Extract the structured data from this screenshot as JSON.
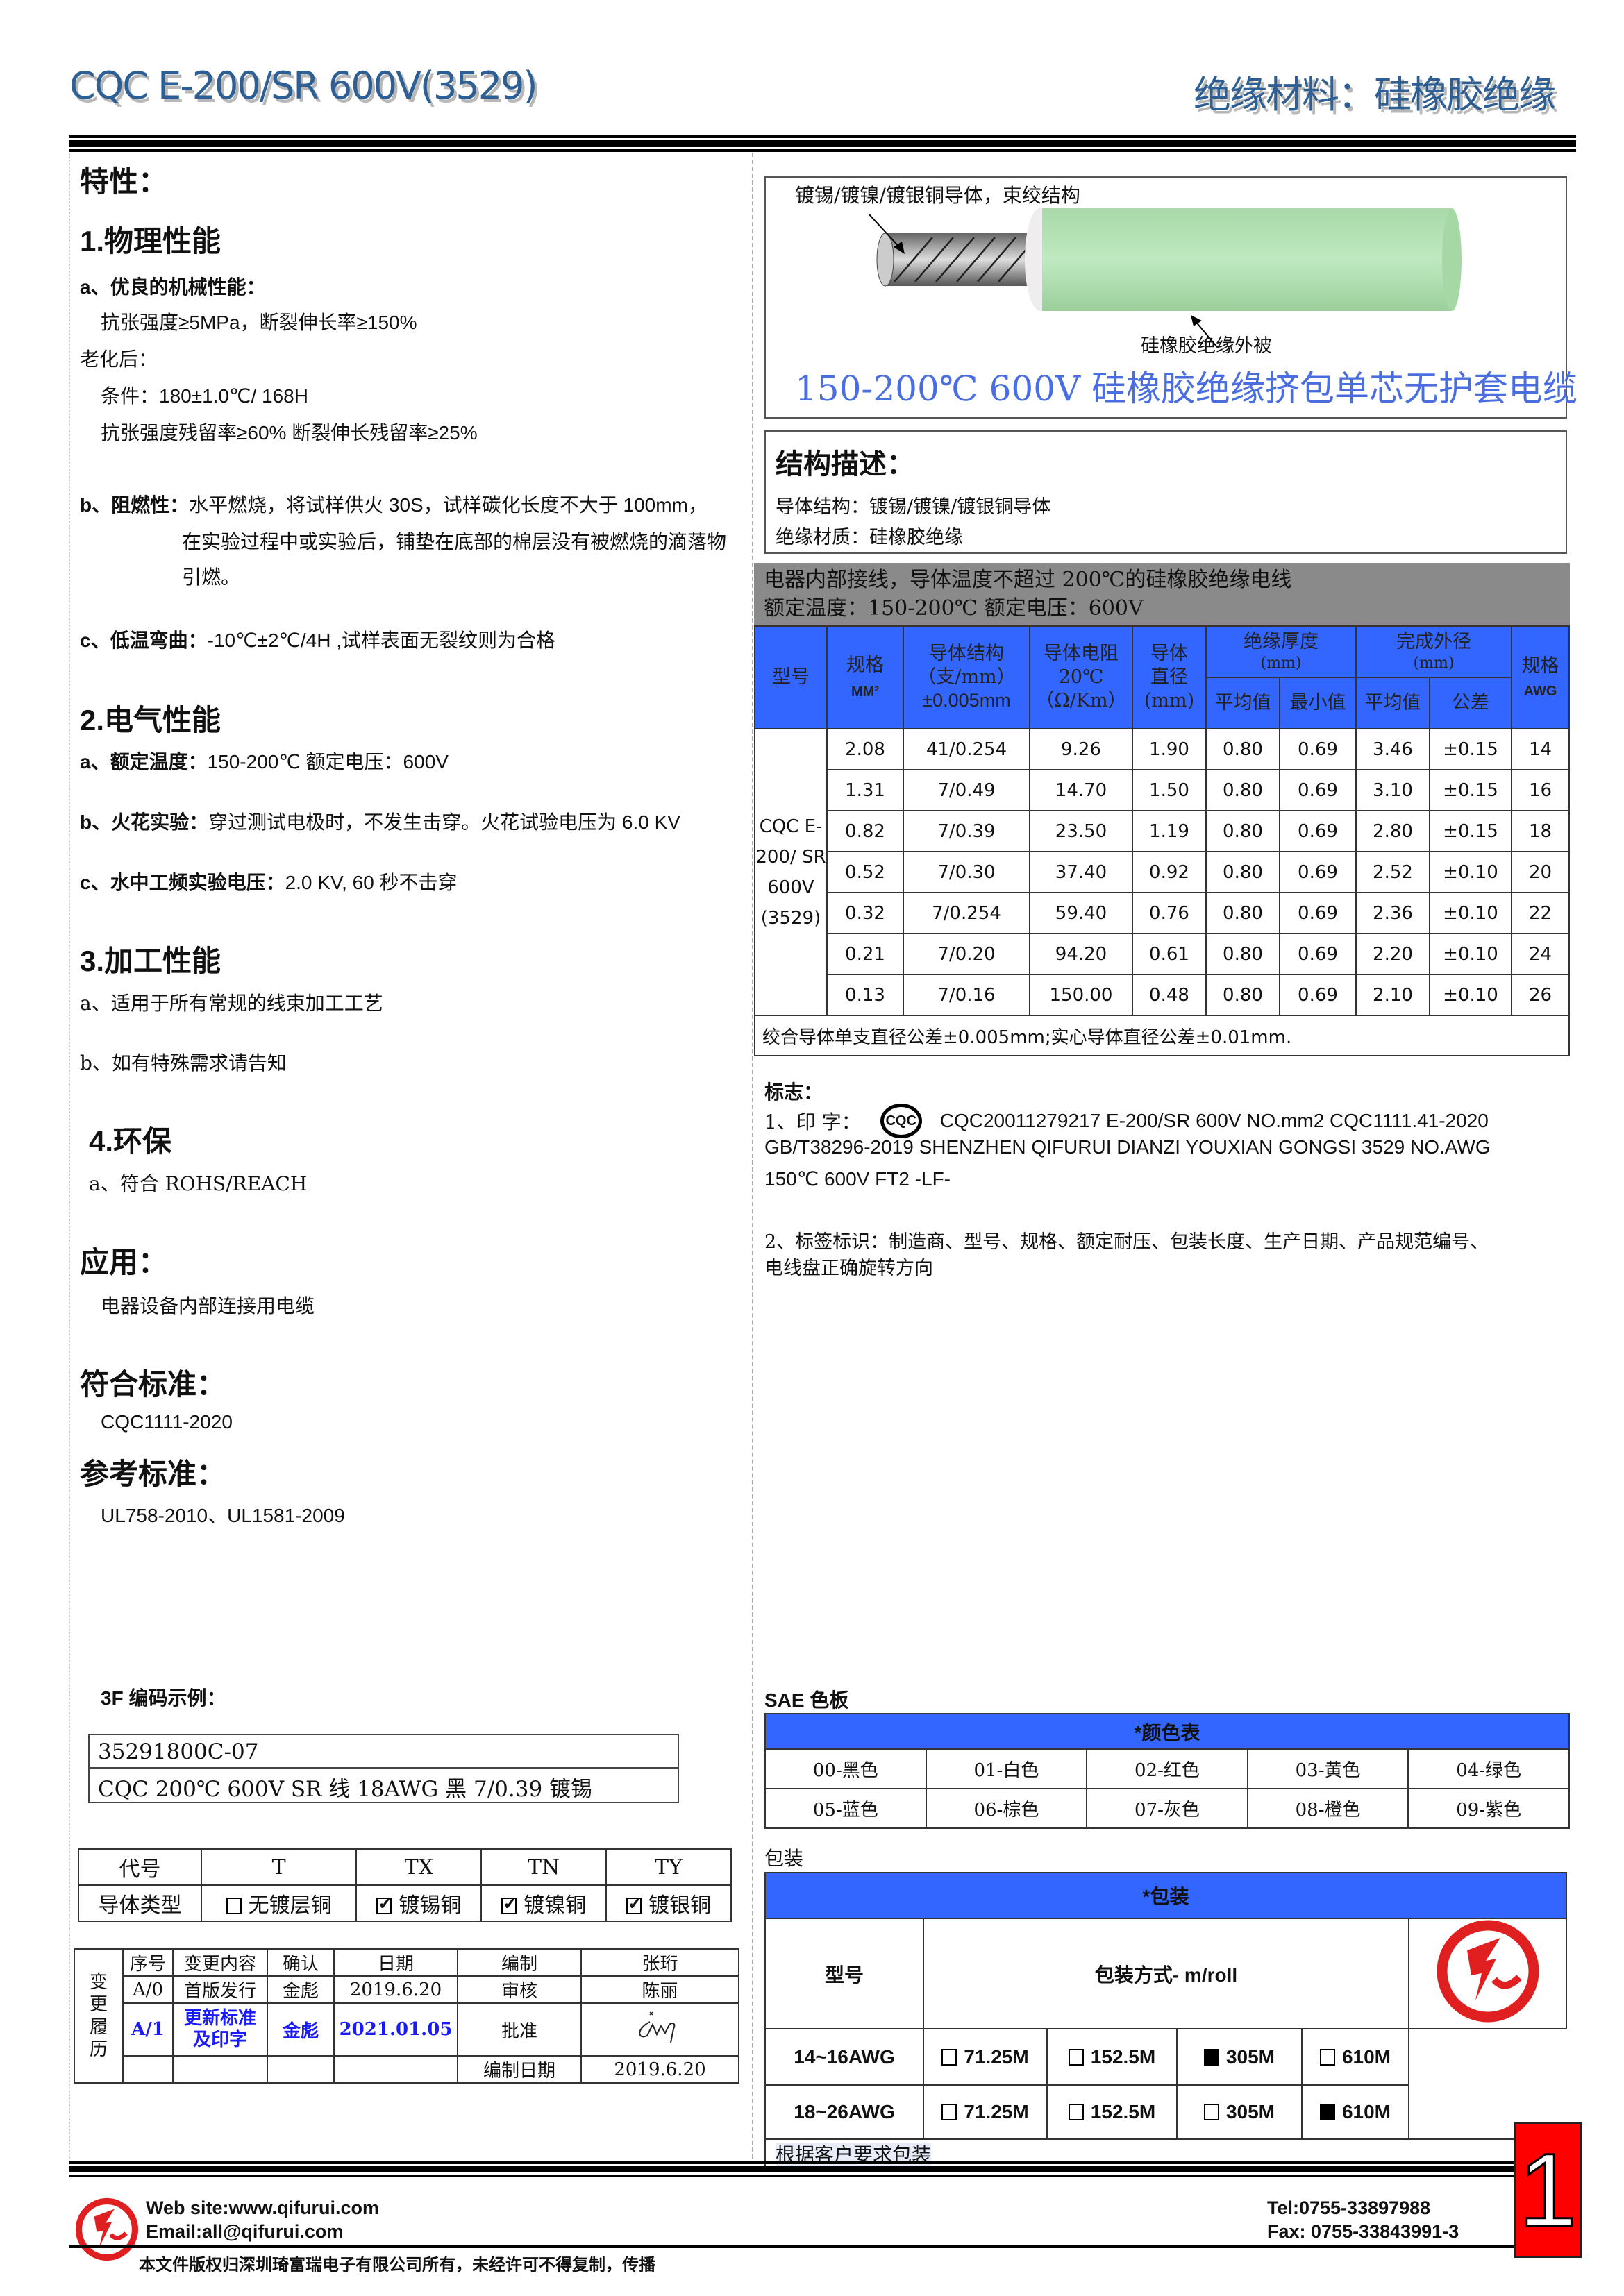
{
  "header": {
    "model": "CQC E-200/SR 600V(3529)",
    "category": "绝缘材料：硅橡胶绝缘"
  },
  "left": {
    "features": "特性：",
    "physical": {
      "title": "1.物理性能",
      "a_label": "a、优良的机械性能：",
      "a1": "抗张强度≥5MPa，断裂伸长率≥150%",
      "aging": "老化后：",
      "cond": "条件：180±1.0℃/ 168H",
      "retention": "抗张强度残留率≥60%  断裂伸长残留率≥25%",
      "b_label": "b、阻燃性：",
      "b1": "水平燃烧，将试样供火 30S，试样碳化长度不大于 100mm，",
      "b2": "在实验过程中或实验后，铺垫在底部的棉层没有被燃烧的滴落物",
      "b3": "引燃。",
      "c_label": "c、低温弯曲：",
      "c1": "-10℃±2℃/4H ,试样表面无裂纹则为合格"
    },
    "electrical": {
      "title": "2.电气性能",
      "a_label": "a、额定温度：",
      "a1": "150-200℃    额定电压：600V",
      "b_label": "b、火花实验：",
      "b1": "穿过测试电极时，不发生击穿。火花试验电压为 6.0 KV",
      "c_label": "c、水中工频实验电压：",
      "c1": "2.0 KV, 60 秒不击穿"
    },
    "processing": {
      "title": "3.加工性能",
      "a": "a、适用于所有常规的线束加工工艺",
      "b": "b、如有特殊需求请告知"
    },
    "env": {
      "title": "4.环保",
      "a": "a、符合 ROHS/REACH"
    },
    "application": {
      "title": "应用：",
      "text": "电器设备内部连接用电缆"
    },
    "standard": {
      "title": "符合标准：",
      "text": "CQC1111-2020"
    },
    "reference": {
      "title": "参考标准：",
      "text": "UL758-2010、UL1581-2009"
    },
    "code_example": {
      "title": "3F 编码示例：",
      "code": "35291800C-07",
      "desc": "CQC 200℃  600V SR 线  18AWG  黑  7/0.39 镀锡"
    },
    "conductor_table": {
      "head": [
        "代号",
        "T",
        "TX",
        "TN",
        "TY"
      ],
      "row_label": "导体类型",
      "types": [
        {
          "label": "无镀层铜",
          "checked": false
        },
        {
          "label": "镀锡铜",
          "checked": true
        },
        {
          "label": "镀镍铜",
          "checked": true
        },
        {
          "label": "镀银铜",
          "checked": true
        }
      ]
    },
    "revision": {
      "side": "变更履历",
      "head": [
        "序号",
        "变更内容",
        "确认",
        "日期",
        "编制",
        "张珩"
      ],
      "rows": [
        [
          "A/0",
          "首版发行",
          "金彪",
          "2019.6.20",
          "审核",
          "陈丽"
        ],
        [
          "A/1",
          "更新标准及印字",
          "金彪",
          "2021.01.05",
          "批准",
          ""
        ]
      ],
      "date_label": "编制日期",
      "date": "2019.6.20"
    }
  },
  "right": {
    "illustration": {
      "conductor_label": "镀锡/镀镍/镀银铜导体，束绞结构",
      "insulation_label": "硅橡胶绝缘外被",
      "title": "150-200℃  600V 硅橡胶绝缘挤包单芯无护套电缆"
    },
    "structure": {
      "title": "结构描述：",
      "conductor": "导体结构：镀锡/镀镍/镀银铜导体",
      "insulation": "绝缘材质：硅橡胶绝缘"
    },
    "banner": {
      "line1": "电器内部接线，导体温度不超过 200℃的硅橡胶绝缘电线",
      "line2": "额定温度：150-200℃  额定电压：600V"
    },
    "spec_table": {
      "h_model": "型号",
      "h_size": "规格",
      "h_size_unit": "MM²",
      "h_struct": "导体结构",
      "h_struct_unit": "（支/mm）",
      "h_struct_tol": "±0.005mm",
      "h_res": "导体电阻",
      "h_res_temp": "20℃",
      "h_res_unit": "（Ω/Km）",
      "h_dia": "导体",
      "h_dia2": "直径",
      "h_dia_unit": "(mm)",
      "h_ins": "绝缘厚度",
      "h_ins_unit": "(mm)",
      "h_od": "完成外径",
      "h_od_unit": "(mm)",
      "h_avg": "平均值",
      "h_min": "最小值",
      "h_avg2": "平均值",
      "h_tol": "公差",
      "h_awg": "规格",
      "h_awg_unit": "AWG",
      "model": "CQC E-200/ SR 600V (3529)",
      "rows": [
        [
          "2.08",
          "41/0.254",
          "9.26",
          "1.90",
          "0.80",
          "0.69",
          "3.46",
          "±0.15",
          "14"
        ],
        [
          "1.31",
          "7/0.49",
          "14.70",
          "1.50",
          "0.80",
          "0.69",
          "3.10",
          "±0.15",
          "16"
        ],
        [
          "0.82",
          "7/0.39",
          "23.50",
          "1.19",
          "0.80",
          "0.69",
          "2.80",
          "±0.15",
          "18"
        ],
        [
          "0.52",
          "7/0.30",
          "37.40",
          "0.92",
          "0.80",
          "0.69",
          "2.52",
          "±0.10",
          "20"
        ],
        [
          "0.32",
          "7/0.254",
          "59.40",
          "0.76",
          "0.80",
          "0.69",
          "2.36",
          "±0.10",
          "22"
        ],
        [
          "0.21",
          "7/0.20",
          "94.20",
          "0.61",
          "0.80",
          "0.69",
          "2.20",
          "±0.10",
          "24"
        ],
        [
          "0.13",
          "7/0.16",
          "150.00",
          "0.48",
          "0.80",
          "0.69",
          "2.10",
          "±0.10",
          "26"
        ]
      ],
      "note": "绞合导体单支直径公差±0.005mm;实心导体直径公差±0.01mm."
    },
    "marking": {
      "title": "标志：",
      "print_label": "1、印 字：",
      "cert_logo": "CQC",
      "line1": "CQC20011279217   E-200/SR   600V   NO.mm2   CQC1111.41-2020",
      "line2": "GB/T38296-2019 SHENZHEN QIFURUI DIANZI YOUXIAN GONGSI      3529 NO.AWG",
      "line3": "150℃  600V FT2 -LF-",
      "label1": "2、标签标识：制造商、型号、规格、额定耐压、包装长度、生产日期、产品规范编号、",
      "label2": "电线盘正确旋转方向"
    },
    "sae": {
      "title": "SAE 色板",
      "table_title": "*颜色表",
      "colors": [
        "00-黑色",
        "01-白色",
        "02-红色",
        "03-黄色",
        "04-绿色",
        "05-蓝色",
        "06-棕色",
        "07-灰色",
        "08-橙色",
        "09-紫色"
      ]
    },
    "packaging": {
      "title": "包装",
      "table_title": "*包装",
      "h_model": "型号",
      "h_method": "包装方式- m/roll",
      "rows": [
        {
          "model": "14~16AWG",
          "opts": [
            {
              "v": "71.25M",
              "sel": false
            },
            {
              "v": "152.5M",
              "sel": false
            },
            {
              "v": "305M",
              "sel": true
            },
            {
              "v": "610M",
              "sel": false
            }
          ]
        },
        {
          "model": "18~26AWG",
          "opts": [
            {
              "v": "71.25M",
              "sel": false
            },
            {
              "v": "152.5M",
              "sel": false
            },
            {
              "v": "305M",
              "sel": false
            },
            {
              "v": "610M",
              "sel": true
            }
          ]
        }
      ],
      "note": "根据客户要求包装"
    }
  },
  "footer": {
    "web": "Web site:www.qifurui.com",
    "email": "Email:all@qifurui.com",
    "tel": "Tel:0755-33897988",
    "fax": "Fax: 0755-33843991-3",
    "copyright": "本文件版权归深圳琦富瑞电子有限公司所有，未经许可不得复制，传播",
    "page": "1"
  },
  "colors": {
    "header_blue": "#2e5f94",
    "table_blue": "#3366ff",
    "banner_gray": "#8a8a8a",
    "accent_red": "#e02020",
    "title_blue": "#4a6ee0"
  }
}
